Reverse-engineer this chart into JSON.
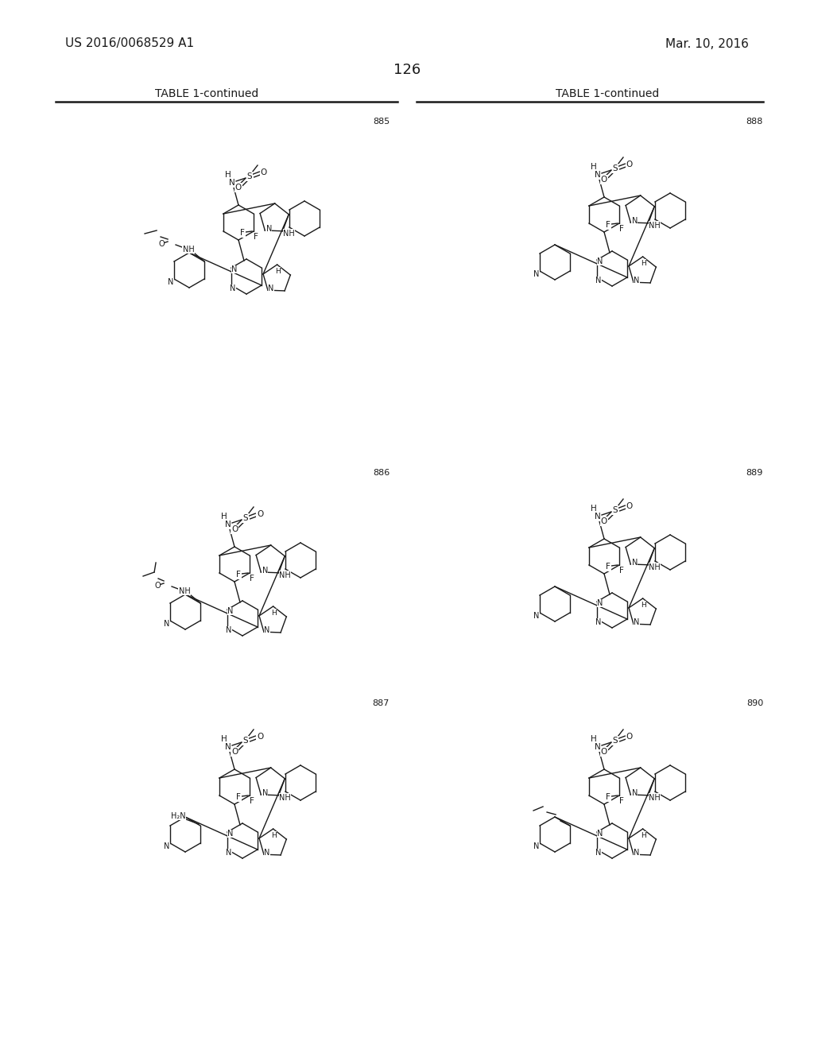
{
  "background_color": "#ffffff",
  "header_left": "US 2016/0068529 A1",
  "header_right": "Mar. 10, 2016",
  "page_number": "126",
  "table_title": "TABLE 1-continued",
  "compound_numbers": [
    "885",
    "888",
    "886",
    "889",
    "887",
    "890"
  ],
  "text_color": "#1a1a1a",
  "divider_color": "#1a1a1a",
  "font_size_header": 11,
  "font_size_table": 10,
  "font_size_page": 13,
  "font_size_compound": 8,
  "font_size_atom": 7.5,
  "bond_lw": 1.0
}
